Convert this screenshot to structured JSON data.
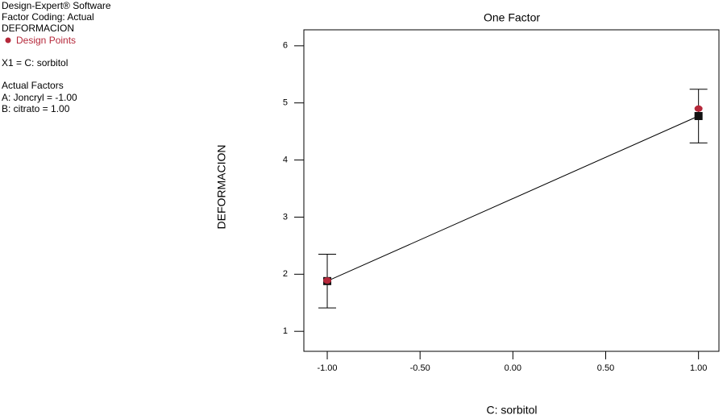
{
  "chart_data": {
    "type": "line",
    "title": "One Factor",
    "xlabel": "C: sorbitol",
    "ylabel": "DEFORMACION",
    "info": [
      "Design-Expert® Software",
      "Factor Coding: Actual",
      "DEFORMACION"
    ],
    "x1_label": "X1 = C: sorbitol",
    "actual_factors_title": "Actual Factors",
    "actual_factors": [
      "A: Joncryl = -1.00",
      "B: citrato = 1.00"
    ],
    "x": [
      -1,
      1
    ],
    "series": [
      {
        "color": "#000000",
        "values": [
          1.88,
          4.77
        ],
        "errors": [
          0.47,
          0.47
        ]
      }
    ],
    "design_points": {
      "name": "Design Points",
      "color": "#b5283a",
      "x": [
        -1,
        1
      ],
      "values": [
        1.89,
        4.9
      ]
    },
    "xlim": [
      -1.126,
      1.11
    ],
    "ylim": [
      0.65,
      6.28
    ],
    "xticks": [
      {
        "value": -1,
        "label": "-1.00"
      },
      {
        "value": -0.5,
        "label": "-0.50"
      },
      {
        "value": 0,
        "label": "0.00"
      },
      {
        "value": 0.5,
        "label": "0.50"
      },
      {
        "value": 1,
        "label": "1.00"
      }
    ],
    "yticks": [
      1,
      2,
      3,
      4,
      5,
      6
    ]
  }
}
